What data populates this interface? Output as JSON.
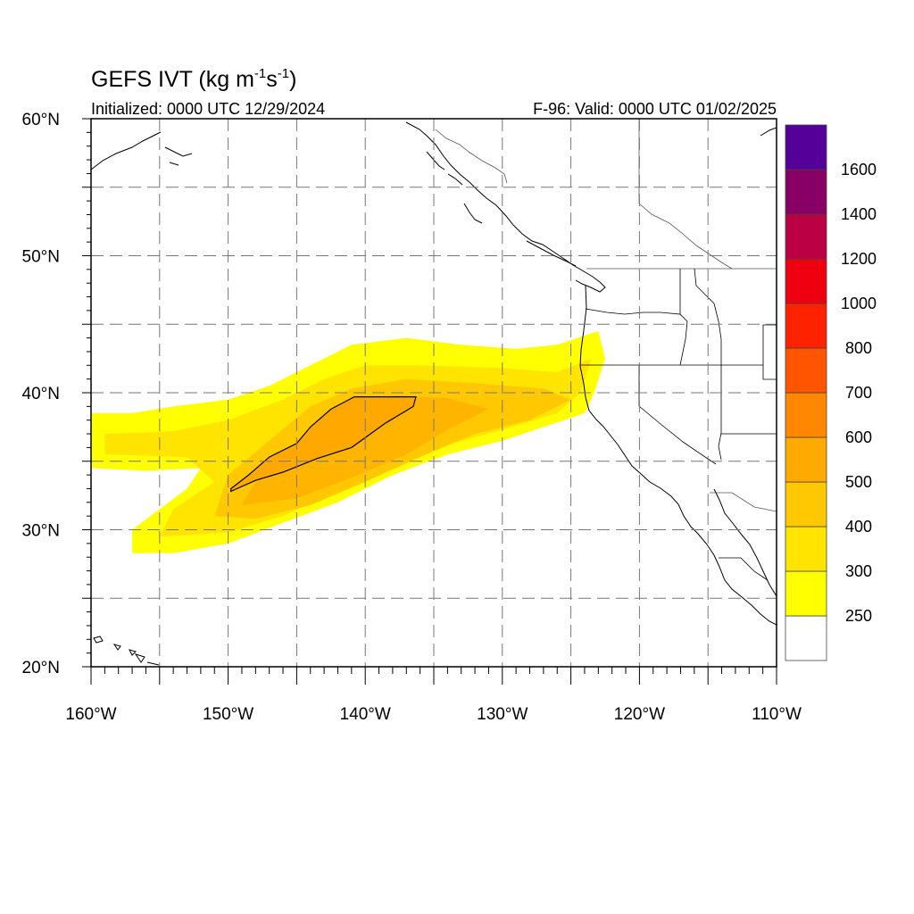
{
  "title": {
    "main": "GEFS IVT (kg m",
    "sup1": "-1",
    "mid": "s",
    "sup2": "-1",
    "close": ")"
  },
  "init_text": "Initialized: 0000 UTC 12/29/2024",
  "valid_text": "F-96: Valid: 0000 UTC 01/02/2025",
  "axes": {
    "lon_range": [
      -160,
      -110
    ],
    "lat_range": [
      20,
      60
    ],
    "lon_ticks": [
      {
        "value": -160,
        "label": "160°W"
      },
      {
        "value": -150,
        "label": "150°W"
      },
      {
        "value": -140,
        "label": "140°W"
      },
      {
        "value": -130,
        "label": "130°W"
      },
      {
        "value": -120,
        "label": "120°W"
      },
      {
        "value": -110,
        "label": "110°W"
      }
    ],
    "lat_ticks": [
      {
        "value": 60,
        "label": "60°N"
      },
      {
        "value": 50,
        "label": "50°N"
      },
      {
        "value": 40,
        "label": "40°N"
      },
      {
        "value": 30,
        "label": "30°N"
      },
      {
        "value": 20,
        "label": "20°N"
      }
    ],
    "grid": "dashed every 5°"
  },
  "colorbar": {
    "levels": [
      "250",
      "300",
      "400",
      "500",
      "600",
      "700",
      "800",
      "1000",
      "1200",
      "1400",
      "1600"
    ],
    "colors": [
      "#ffffff",
      "#ffff00",
      "#ffe400",
      "#ffc800",
      "#ffaa00",
      "#ff8800",
      "#ff5500",
      "#ff2200",
      "#ee0011",
      "#bb0044",
      "#880066",
      "#550099"
    ]
  },
  "ivt_plume": {
    "description_units": "kg m-1 s-1",
    "band_250": [
      [
        -160,
        38.5
      ],
      [
        -157,
        38.5
      ],
      [
        -154,
        39
      ],
      [
        -150,
        39.5
      ],
      [
        -147,
        40.5
      ],
      [
        -144,
        42
      ],
      [
        -141,
        43.5
      ],
      [
        -137,
        44
      ],
      [
        -133,
        43.5
      ],
      [
        -129,
        43.2
      ],
      [
        -126,
        43.5
      ],
      [
        -123,
        44.5
      ],
      [
        -122.5,
        42.5
      ],
      [
        -123.3,
        40
      ],
      [
        -124,
        38.5
      ],
      [
        -127,
        37.5
      ],
      [
        -130,
        36.5
      ],
      [
        -134,
        35.5
      ],
      [
        -138,
        34
      ],
      [
        -142,
        32
      ],
      [
        -146,
        30.5
      ],
      [
        -150,
        29
      ],
      [
        -154,
        28.3
      ],
      [
        -157,
        28.3
      ],
      [
        -157,
        30
      ],
      [
        -153,
        33
      ],
      [
        -152,
        34.5
      ],
      [
        -156,
        34.3
      ],
      [
        -160,
        34.5
      ]
    ],
    "band_300": [
      [
        -159,
        37
      ],
      [
        -154,
        37.2
      ],
      [
        -150,
        38
      ],
      [
        -146,
        39.5
      ],
      [
        -143,
        41
      ],
      [
        -140,
        42
      ],
      [
        -136,
        42
      ],
      [
        -130,
        41.8
      ],
      [
        -126,
        41.5
      ],
      [
        -123.5,
        42.5
      ],
      [
        -124.3,
        40
      ],
      [
        -126,
        38.5
      ],
      [
        -130,
        37.3
      ],
      [
        -134,
        36.2
      ],
      [
        -138,
        34.5
      ],
      [
        -142,
        32.8
      ],
      [
        -146,
        31
      ],
      [
        -150,
        29.8
      ],
      [
        -155,
        29.5
      ],
      [
        -154,
        31.5
      ],
      [
        -151,
        33.5
      ],
      [
        -153,
        35.3
      ],
      [
        -159,
        35.5
      ]
    ],
    "band_400": [
      [
        -150,
        34
      ],
      [
        -147,
        36.5
      ],
      [
        -144,
        39
      ],
      [
        -141,
        40.3
      ],
      [
        -137,
        41
      ],
      [
        -132,
        40.7
      ],
      [
        -127,
        40.3
      ],
      [
        -125,
        39.5
      ],
      [
        -128,
        38
      ],
      [
        -132,
        37
      ],
      [
        -136,
        35.3
      ],
      [
        -140,
        33.5
      ],
      [
        -144,
        31.8
      ],
      [
        -148,
        30.8
      ],
      [
        -151,
        31
      ]
    ],
    "band_500": [
      [
        -148,
        33.5
      ],
      [
        -146,
        35.5
      ],
      [
        -143,
        37.5
      ],
      [
        -141,
        39.3
      ],
      [
        -138,
        39.8
      ],
      [
        -134,
        39.6
      ],
      [
        -131,
        38.8
      ],
      [
        -134,
        37.3
      ],
      [
        -137,
        35.5
      ],
      [
        -141,
        33.8
      ],
      [
        -145,
        32.3
      ],
      [
        -149,
        31.8
      ]
    ],
    "band_600_outline": [
      [
        -149.8,
        33
      ],
      [
        -148.5,
        34
      ],
      [
        -147,
        35.3
      ],
      [
        -145,
        36.3
      ],
      [
        -144,
        37.5
      ],
      [
        -142.5,
        38.8
      ],
      [
        -140.8,
        39.7
      ],
      [
        -136.3,
        39.7
      ],
      [
        -136.5,
        39
      ],
      [
        -138.5,
        37.8
      ],
      [
        -141,
        36
      ],
      [
        -143.5,
        35.2
      ],
      [
        -146,
        34.2
      ],
      [
        -148,
        33.6
      ],
      [
        -149.8,
        32.8
      ]
    ]
  },
  "states_text": []
}
